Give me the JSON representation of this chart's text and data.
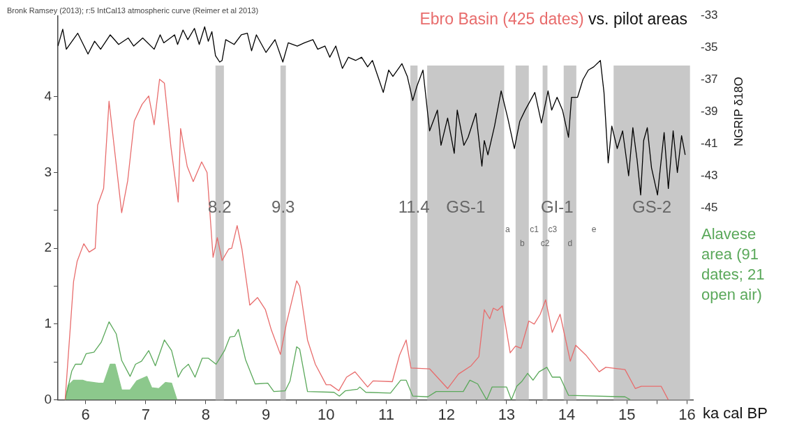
{
  "chart_data": {
    "type": "line",
    "title": "vs. pilot areas",
    "xlabel": "ka cal BP",
    "y2label": "NGRIP δ18O",
    "annotations": [
      "Bronk Ramsey (2013); r:5 IntCal13 atmospheric curve (Reimer et al 2013)",
      "GI-1",
      "a",
      "c1",
      "c3",
      "e"
    ],
    "xlim": [
      5.54,
      16.1
    ],
    "xticks": [
      6,
      {
        "value": 6.5,
        "label": null
      },
      7,
      {
        "value": 7.5,
        "label": null
      },
      8,
      {
        "value": 8.5,
        "label": null
      },
      9,
      {
        "value": 9.5,
        "label": null
      },
      10,
      {
        "value": 10.5,
        "label": null
      },
      11,
      {
        "value": 11.5,
        "label": null
      },
      12,
      {
        "value": 12.5,
        "label": null
      },
      13,
      {
        "value": 13.5,
        "label": null
      },
      14,
      {
        "value": 14.5,
        "label": null
      },
      15,
      {
        "value": 15.5,
        "label": null
      },
      16
    ],
    "ylim": [
      0,
      5.07
    ],
    "yticks": [
      0,
      {
        "value": 0.5,
        "label": null
      },
      1,
      {
        "value": 1.5,
        "label": null
      },
      2,
      {
        "value": 2.5,
        "label": null
      },
      3,
      {
        "value": 3.5,
        "label": null
      },
      4
    ],
    "y2lim": [
      -57,
      -33
    ],
    "y2ticks": [
      -33,
      -35,
      -37,
      -39,
      -41,
      -43,
      -45
    ],
    "bands": [
      {
        "axis": "x",
        "from": 8.16,
        "to": 8.3,
        "label": "8.2",
        "color": "#c8c8c8"
      },
      {
        "axis": "x",
        "from": 9.24,
        "to": 9.33,
        "label": "9.3",
        "color": "#c8c8c8"
      },
      {
        "axis": "x",
        "from": 11.4,
        "to": 11.52,
        "label": "11.4",
        "color": "#c8c8c8"
      },
      {
        "axis": "x",
        "from": 11.68,
        "to": 12.96,
        "label": "GS-1",
        "color": "#c8c8c8"
      },
      {
        "axis": "x",
        "from": 13.15,
        "to": 13.37,
        "label": "b",
        "color": "#c8c8c8"
      },
      {
        "axis": "x",
        "from": 13.6,
        "to": 13.68,
        "label": "c2",
        "color": "#c8c8c8"
      },
      {
        "axis": "x",
        "from": 13.95,
        "to": 14.16,
        "label": "d",
        "color": "#c8c8c8"
      },
      {
        "axis": "x",
        "from": 14.78,
        "to": 16.05,
        "label": "GS-2",
        "color": "#c8c8c8"
      }
    ],
    "series": [
      {
        "type": "line",
        "axis": "y2",
        "color": "#000000",
        "x": [
          5.54,
          5.62,
          5.68,
          5.87,
          6.04,
          6.15,
          6.25,
          6.41,
          6.55,
          6.71,
          6.8,
          6.95,
          7.14,
          7.24,
          7.3,
          7.48,
          7.53,
          7.62,
          7.7,
          7.81,
          7.89,
          7.98,
          8.04,
          8.1,
          8.16,
          8.23,
          8.27,
          8.33,
          8.47,
          8.59,
          8.69,
          8.76,
          8.84,
          9.0,
          9.15,
          9.28,
          9.37,
          9.52,
          9.64,
          9.78,
          9.86,
          9.98,
          10.06,
          10.16,
          10.27,
          10.37,
          10.49,
          10.59,
          10.69,
          10.77,
          10.87,
          10.95,
          11.04,
          11.11,
          11.26,
          11.35,
          11.44,
          11.51,
          11.61,
          11.72,
          11.85,
          11.91,
          12.02,
          12.13,
          12.18,
          12.29,
          12.36,
          12.49,
          12.59,
          12.63,
          12.69,
          12.8,
          12.91,
          13.02,
          13.13,
          13.22,
          13.31,
          13.47,
          13.58,
          13.69,
          13.75,
          13.84,
          13.93,
          14.03,
          14.08,
          14.18,
          14.27,
          14.36,
          14.45,
          14.56,
          14.62,
          14.69,
          14.75,
          14.84,
          14.93,
          15.03,
          15.1,
          15.17,
          15.23,
          15.28,
          15.34,
          15.41,
          15.51,
          15.58,
          15.62,
          15.69,
          15.77,
          15.84,
          15.91,
          15.97
        ],
        "values": [
          -34.9,
          -33.85,
          -35.1,
          -34.1,
          -35.4,
          -34.6,
          -35.1,
          -34.2,
          -34.8,
          -34.4,
          -34.9,
          -34.4,
          -35.1,
          -34.2,
          -34.7,
          -34.2,
          -34.8,
          -33.9,
          -34.5,
          -33.8,
          -34.8,
          -33.7,
          -34.6,
          -34.0,
          -35.5,
          -35.9,
          -35.8,
          -34.5,
          -34.8,
          -34.2,
          -34.1,
          -35.2,
          -34.2,
          -35.3,
          -34.5,
          -35.9,
          -34.7,
          -34.9,
          -34.7,
          -34.5,
          -35.1,
          -34.9,
          -35.6,
          -34.9,
          -36.3,
          -35.6,
          -35.8,
          -35.6,
          -36.2,
          -35.8,
          -36.9,
          -37.8,
          -36.4,
          -36.8,
          -36.0,
          -36.8,
          -38.3,
          -37.4,
          -36.4,
          -40.2,
          -38.9,
          -41.1,
          -39.4,
          -41.6,
          -38.9,
          -41.1,
          -40.6,
          -39.1,
          -42.4,
          -40.8,
          -41.7,
          -39.9,
          -37.7,
          -39.4,
          -41.3,
          -39.6,
          -38.9,
          -37.8,
          -39.7,
          -37.7,
          -38.9,
          -38.1,
          -38.9,
          -40.6,
          -38.1,
          -38.1,
          -37.0,
          -36.4,
          -36.2,
          -35.8,
          -37.8,
          -42.2,
          -39.9,
          -41.3,
          -40.2,
          -43.0,
          -40.0,
          -42.0,
          -44.2,
          -40.8,
          -40.0,
          -42.5,
          -44.2,
          -41.7,
          -40.3,
          -43.8,
          -40.2,
          -42.8,
          -40.5,
          -41.7
        ]
      },
      {
        "type": "line",
        "name": "Ebro Basin (425 dates)",
        "color": "#e86c6c",
        "x": [
          5.66,
          5.8,
          5.86,
          5.97,
          6.06,
          6.16,
          6.2,
          6.3,
          6.39,
          6.6,
          6.7,
          6.81,
          6.94,
          7.05,
          7.14,
          7.23,
          7.31,
          7.42,
          7.54,
          7.58,
          7.69,
          7.79,
          7.93,
          8.02,
          8.07,
          8.12,
          8.19,
          8.27,
          8.38,
          8.43,
          8.52,
          8.6,
          8.73,
          8.86,
          8.99,
          9.09,
          9.24,
          9.34,
          9.51,
          9.56,
          9.69,
          9.82,
          10.0,
          10.07,
          10.21,
          10.34,
          10.48,
          10.69,
          10.78,
          11.1,
          11.22,
          11.33,
          11.41,
          11.72,
          12.02,
          12.2,
          12.41,
          12.54,
          12.63,
          12.72,
          12.78,
          12.85,
          12.93,
          13.06,
          13.15,
          13.24,
          13.37,
          13.46,
          13.56,
          13.65,
          13.76,
          13.89,
          14.06,
          14.15,
          14.32,
          14.54,
          14.65,
          14.97,
          15.14,
          15.24,
          15.57,
          15.69
        ],
        "values": [
          0,
          1.56,
          1.83,
          2.06,
          1.95,
          2.0,
          2.57,
          2.79,
          3.94,
          2.47,
          2.89,
          3.68,
          3.9,
          4.01,
          3.63,
          4.23,
          4.18,
          3.33,
          2.61,
          3.58,
          3.08,
          2.88,
          3.14,
          3.0,
          2.44,
          1.88,
          2.14,
          1.84,
          1.99,
          2.0,
          2.3,
          1.99,
          1.25,
          1.35,
          1.19,
          0.92,
          0.6,
          1.01,
          1.57,
          1.5,
          0.79,
          0.47,
          0.2,
          0.2,
          0.12,
          0.3,
          0.37,
          0.17,
          0.25,
          0.24,
          0.59,
          0.79,
          0.42,
          0.41,
          0.15,
          0.34,
          0.45,
          0.57,
          1.19,
          1.07,
          1.21,
          1.18,
          1.24,
          0.62,
          0.71,
          0.68,
          1.04,
          1.0,
          1.13,
          1.32,
          0.89,
          1.13,
          0.51,
          0.72,
          0.59,
          0.37,
          0.43,
          0.4,
          0.15,
          0.18,
          0.18,
          0
        ]
      },
      {
        "type": "line",
        "name": "Alavese area (91 dates; 21 open air)",
        "color": "#5aa85a",
        "x": [
          5.66,
          5.77,
          5.83,
          5.93,
          6.01,
          6.14,
          6.26,
          6.39,
          6.51,
          6.6,
          6.74,
          6.83,
          6.93,
          7.05,
          7.16,
          7.31,
          7.43,
          7.54,
          7.61,
          7.71,
          7.82,
          7.94,
          8.04,
          8.17,
          8.31,
          8.4,
          8.48,
          8.54,
          8.66,
          8.82,
          9.03,
          9.13,
          9.32,
          9.4,
          9.51,
          9.56,
          9.69,
          10.13,
          10.22,
          10.32,
          10.52,
          10.56,
          10.66,
          11.07,
          11.24,
          11.33,
          11.44,
          11.69,
          11.83,
          12.28,
          12.39,
          12.52,
          12.67,
          12.76,
          13.0,
          13.08,
          13.17,
          13.25,
          13.35,
          13.44,
          13.54,
          13.67,
          13.76,
          13.89,
          14.03,
          14.97,
          15.06
        ],
        "values": [
          0,
          0.38,
          0.47,
          0.47,
          0.61,
          0.63,
          0.76,
          1.03,
          0.87,
          0.52,
          0.31,
          0.47,
          0.51,
          0.65,
          0.45,
          0.79,
          0.65,
          0.3,
          0.4,
          0.47,
          0.3,
          0.55,
          0.55,
          0.47,
          0.65,
          0.83,
          0.84,
          0.93,
          0.53,
          0.21,
          0.22,
          0.11,
          0.12,
          0.25,
          0.7,
          0.67,
          0.11,
          0.1,
          0.05,
          0.12,
          0.14,
          0.17,
          0.1,
          0.09,
          0.26,
          0.26,
          0.05,
          0.04,
          0.11,
          0.11,
          0.26,
          0.21,
          0,
          0.17,
          0.17,
          0,
          0.18,
          0.24,
          0.35,
          0.26,
          0.37,
          0.43,
          0.3,
          0.3,
          0.06,
          0.04,
          0
        ]
      },
      {
        "type": "area",
        "color": "#8cc88c",
        "x": [
          5.66,
          5.71,
          5.8,
          5.95,
          6.03,
          6.22,
          6.3,
          6.41,
          6.49,
          6.6,
          6.74,
          6.85,
          7.02,
          7.1,
          7.22,
          7.33,
          7.43,
          7.52
        ],
        "values": [
          0,
          0.19,
          0.26,
          0.26,
          0.24,
          0.22,
          0.22,
          0.47,
          0.47,
          0.13,
          0.13,
          0.25,
          0.31,
          0.16,
          0.15,
          0.23,
          0.22,
          0
        ]
      }
    ]
  }
}
